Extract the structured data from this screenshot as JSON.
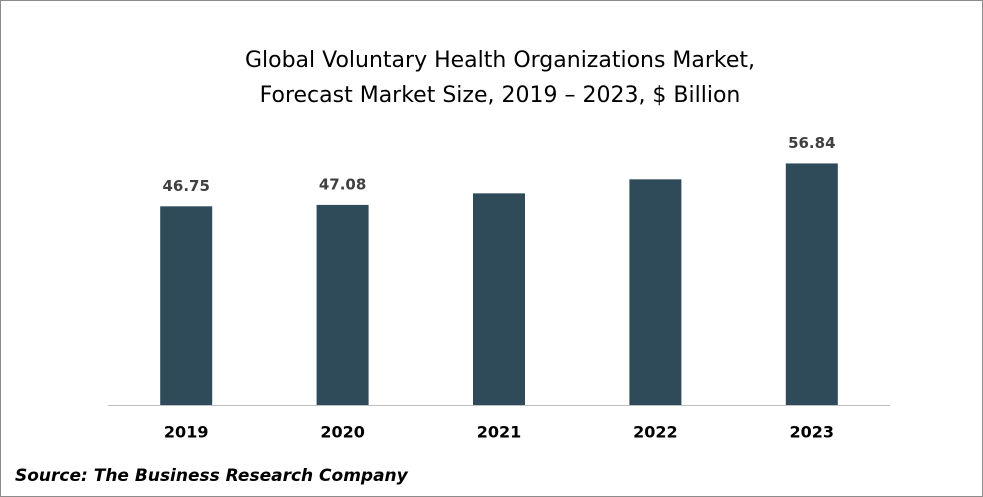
{
  "chart_data": {
    "type": "bar",
    "title": [
      "Global Voluntary Health Organizations Market,",
      "Forecast Market Size, 2019 – 2023, $ Billion"
    ],
    "categories": [
      "2019",
      "2020",
      "2021",
      "2022",
      "2023"
    ],
    "values": [
      46.75,
      47.08,
      49.8,
      53.1,
      56.84
    ],
    "value_labels": [
      "46.75",
      "47.08",
      null,
      null,
      "56.84"
    ],
    "color": "#2f4b5a",
    "ylim": [
      0,
      60
    ],
    "source": "Source: The Business Research Company"
  }
}
